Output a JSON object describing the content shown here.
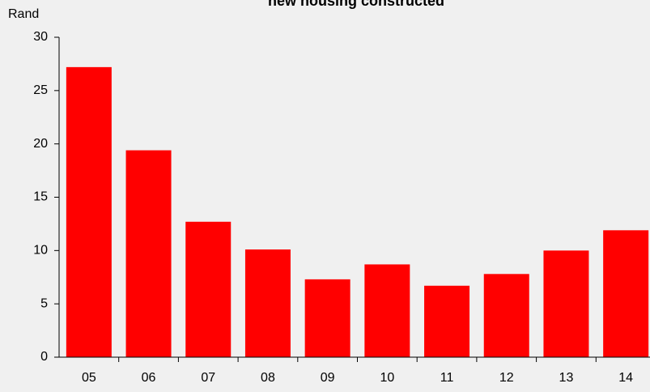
{
  "chart_data": {
    "type": "bar",
    "title": "new housing constructed",
    "y_axis_label": "Rand",
    "categories": [
      "05",
      "06",
      "07",
      "08",
      "09",
      "10",
      "11",
      "12",
      "13",
      "14"
    ],
    "values": [
      27.2,
      19.4,
      12.7,
      10.1,
      7.3,
      8.7,
      6.7,
      7.8,
      10.0,
      11.9
    ],
    "color": "#ff0000",
    "ylim": [
      0,
      30
    ],
    "yticks": [
      0,
      5,
      10,
      15,
      20,
      25,
      30
    ],
    "grid": false
  }
}
